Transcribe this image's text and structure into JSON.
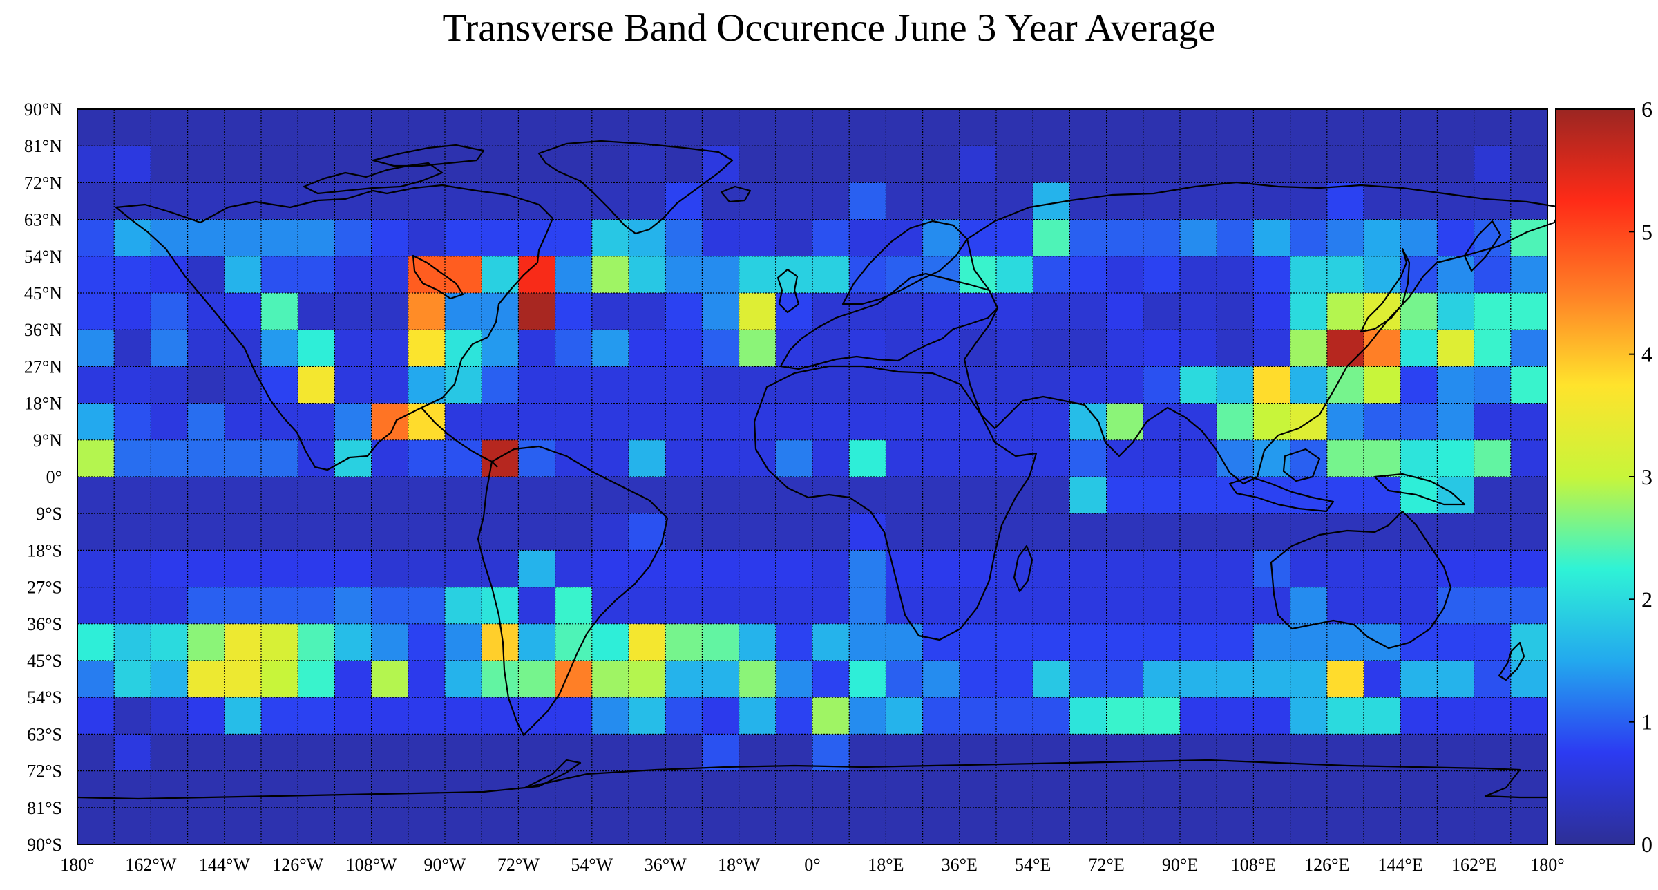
{
  "title": "Transverse Band Occurence June 3 Year Average",
  "colormap": "jet",
  "colors": {
    "background": "#ffffff",
    "grid": "#000000",
    "coastline": "#000000",
    "colormap_stops": [
      "#2d2f96",
      "#2c3bf2",
      "#23a9ee",
      "#2ff3d6",
      "#c8f53a",
      "#ffe32c",
      "#ff7f26",
      "#ff2b17",
      "#9b2622"
    ]
  },
  "chart_data": {
    "type": "heatmap",
    "title": "Transverse Band Occurence June 3 Year Average",
    "projection": "equirectangular",
    "cell_size_deg": 9,
    "lon_range": [
      -180,
      180
    ],
    "lat_range": [
      -90,
      90
    ],
    "x_tick_labels": [
      "180°",
      "162°W",
      "144°W",
      "126°W",
      "108°W",
      "90°W",
      "72°W",
      "54°W",
      "36°W",
      "18°W",
      "0°",
      "18°E",
      "36°E",
      "54°E",
      "72°E",
      "90°E",
      "108°E",
      "126°E",
      "144°E",
      "162°E",
      "180°"
    ],
    "y_tick_labels": [
      "90°N",
      "81°N",
      "72°N",
      "63°N",
      "54°N",
      "45°N",
      "36°N",
      "27°N",
      "18°N",
      "9°N",
      "0°",
      "9°S",
      "18°S",
      "27°S",
      "36°S",
      "45°S",
      "54°S",
      "63°S",
      "72°S",
      "81°S",
      "90°S"
    ],
    "colorbar": {
      "min": 0,
      "max": 6,
      "ticks": [
        "0",
        "1",
        "2",
        "3",
        "4",
        "5",
        "6"
      ]
    },
    "grid_rows_lat_north_edge": [
      90,
      81,
      72,
      63,
      54,
      45,
      36,
      27,
      18,
      9,
      0,
      -9,
      -18,
      -27,
      -36,
      -45,
      -54,
      -63,
      -72,
      -81
    ],
    "values": [
      [
        0.2,
        0.2,
        0.2,
        0.2,
        0.2,
        0.2,
        0.2,
        0.2,
        0.2,
        0.2,
        0.2,
        0.2,
        0.2,
        0.2,
        0.2,
        0.2,
        0.2,
        0.2,
        0.2,
        0.2,
        0.2,
        0.2,
        0.2,
        0.2,
        0.2,
        0.2,
        0.2,
        0.2,
        0.2,
        0.2,
        0.2,
        0.2,
        0.2,
        0.2,
        0.2,
        0.2,
        0.2,
        0.2,
        0.2,
        0.2
      ],
      [
        0.5,
        0.6,
        0.2,
        0.2,
        0.2,
        0.2,
        0.2,
        0.2,
        0.2,
        0.2,
        0.2,
        0.2,
        0.2,
        0.2,
        0.2,
        0.3,
        0.2,
        0.6,
        0.2,
        0.2,
        0.2,
        0.2,
        0.2,
        0.2,
        0.5,
        0.2,
        0.2,
        0.2,
        0.2,
        0.2,
        0.2,
        0.2,
        0.2,
        0.2,
        0.2,
        0.2,
        0.2,
        0.2,
        0.5,
        0.2
      ],
      [
        0.3,
        0.3,
        0.3,
        0.3,
        0.3,
        0.3,
        0.3,
        0.3,
        0.3,
        0.3,
        0.3,
        0.3,
        0.3,
        0.3,
        0.3,
        0.3,
        0.8,
        0.3,
        0.3,
        0.3,
        0.3,
        1.0,
        0.3,
        0.3,
        0.3,
        0.3,
        1.6,
        0.3,
        0.3,
        0.3,
        0.3,
        0.3,
        0.3,
        0.3,
        0.8,
        0.3,
        0.3,
        0.3,
        0.3,
        0.3
      ],
      [
        0.9,
        1.5,
        1.3,
        1.3,
        1.3,
        1.3,
        1.3,
        1.0,
        0.8,
        0.5,
        0.8,
        0.8,
        0.8,
        0.8,
        1.8,
        1.6,
        1.1,
        0.6,
        0.6,
        0.4,
        0.9,
        0.6,
        0.6,
        1.3,
        0.8,
        0.8,
        2.4,
        1.0,
        1.0,
        1.0,
        1.3,
        1.0,
        1.5,
        1.0,
        1.2,
        1.5,
        1.3,
        0.8,
        1.0,
        2.4
      ],
      [
        0.8,
        0.8,
        0.7,
        0.4,
        1.6,
        0.9,
        0.9,
        0.6,
        0.6,
        4.8,
        4.8,
        1.9,
        5.3,
        1.3,
        2.8,
        1.8,
        1.3,
        1.3,
        1.9,
        1.9,
        1.9,
        0.9,
        1.0,
        1.1,
        2.3,
        2.0,
        0.9,
        0.8,
        0.6,
        0.8,
        0.5,
        0.5,
        0.8,
        1.9,
        1.9,
        1.6,
        0.9,
        1.3,
        0.9,
        1.3
      ],
      [
        0.8,
        0.7,
        1.0,
        0.6,
        0.7,
        2.4,
        0.4,
        0.4,
        0.4,
        4.4,
        1.3,
        1.3,
        5.9,
        0.8,
        0.5,
        0.5,
        0.8,
        1.3,
        3.3,
        0.8,
        0.5,
        0.5,
        0.5,
        0.6,
        0.6,
        0.6,
        0.5,
        0.5,
        0.7,
        0.4,
        0.5,
        0.4,
        0.7,
        2.0,
        2.9,
        3.3,
        2.6,
        1.9,
        2.3,
        2.3
      ],
      [
        1.3,
        0.4,
        1.2,
        0.5,
        0.5,
        1.4,
        2.2,
        0.6,
        0.6,
        3.7,
        2.1,
        1.4,
        0.6,
        1.0,
        1.4,
        0.7,
        0.7,
        1.0,
        2.7,
        0.6,
        0.5,
        0.6,
        0.5,
        0.6,
        0.4,
        0.5,
        0.4,
        0.4,
        0.6,
        0.7,
        0.6,
        0.4,
        0.6,
        2.8,
        5.8,
        4.5,
        2.1,
        3.3,
        2.3,
        1.2
      ],
      [
        0.6,
        0.6,
        0.5,
        0.3,
        0.4,
        0.8,
        3.6,
        0.6,
        0.6,
        1.5,
        1.8,
        1.0,
        0.6,
        0.6,
        0.6,
        0.6,
        0.6,
        0.5,
        0.5,
        0.5,
        0.5,
        0.5,
        0.5,
        0.5,
        0.5,
        0.5,
        0.5,
        0.6,
        0.6,
        0.9,
        2.0,
        1.7,
        3.8,
        1.6,
        2.6,
        3.0,
        0.8,
        1.3,
        1.2,
        2.3
      ],
      [
        1.5,
        0.9,
        0.6,
        1.1,
        0.6,
        0.6,
        0.6,
        1.2,
        4.6,
        3.8,
        0.6,
        0.6,
        0.6,
        0.6,
        0.6,
        0.6,
        0.6,
        0.6,
        0.6,
        0.6,
        0.6,
        0.6,
        0.6,
        0.6,
        0.6,
        0.6,
        0.6,
        1.7,
        2.7,
        0.6,
        0.6,
        2.5,
        3.0,
        3.3,
        1.3,
        1.0,
        1.0,
        1.3,
        0.6,
        0.6
      ],
      [
        2.9,
        1.1,
        1.1,
        1.1,
        1.1,
        1.1,
        0.6,
        1.9,
        0.6,
        0.9,
        0.9,
        5.8,
        1.0,
        0.6,
        0.6,
        1.6,
        0.6,
        0.6,
        0.6,
        1.2,
        0.6,
        2.2,
        0.6,
        0.6,
        0.6,
        0.6,
        0.6,
        1.0,
        0.6,
        0.6,
        0.6,
        1.2,
        1.4,
        1.0,
        2.6,
        2.6,
        2.1,
        2.2,
        2.5,
        0.6
      ],
      [
        0.3,
        0.3,
        0.3,
        0.3,
        0.3,
        0.3,
        0.3,
        0.3,
        0.3,
        0.3,
        0.3,
        0.3,
        0.3,
        0.3,
        0.3,
        0.3,
        0.3,
        0.3,
        0.3,
        0.3,
        0.3,
        0.3,
        0.3,
        0.3,
        0.3,
        0.3,
        0.3,
        1.8,
        0.8,
        0.8,
        0.8,
        0.8,
        0.8,
        0.8,
        0.8,
        0.8,
        2.2,
        1.8,
        0.3,
        0.3
      ],
      [
        0.3,
        0.3,
        0.3,
        0.3,
        0.3,
        0.3,
        0.3,
        0.3,
        0.3,
        0.3,
        0.3,
        0.3,
        0.3,
        0.3,
        0.5,
        0.9,
        0.3,
        0.3,
        0.3,
        0.3,
        0.3,
        0.7,
        0.3,
        0.3,
        0.3,
        0.3,
        0.3,
        0.3,
        0.3,
        0.3,
        0.3,
        0.3,
        0.3,
        0.3,
        0.3,
        0.3,
        0.3,
        0.3,
        0.3,
        0.3
      ],
      [
        0.6,
        0.6,
        0.7,
        0.7,
        0.7,
        0.7,
        0.7,
        0.7,
        0.5,
        0.5,
        0.5,
        0.5,
        1.6,
        0.6,
        0.7,
        0.7,
        0.7,
        0.7,
        0.7,
        0.7,
        0.6,
        1.2,
        0.7,
        0.7,
        0.7,
        0.6,
        0.6,
        0.6,
        0.6,
        0.6,
        0.6,
        0.6,
        1.0,
        0.6,
        0.6,
        0.6,
        0.6,
        0.7,
        0.7,
        0.7
      ],
      [
        0.6,
        0.6,
        0.6,
        1.0,
        1.0,
        1.0,
        1.0,
        1.2,
        1.0,
        1.0,
        1.9,
        2.1,
        0.6,
        2.3,
        0.6,
        0.6,
        0.6,
        0.6,
        0.6,
        0.6,
        0.6,
        1.2,
        0.6,
        0.6,
        0.6,
        0.6,
        0.6,
        0.6,
        0.6,
        0.6,
        0.6,
        0.6,
        0.6,
        1.3,
        0.6,
        0.6,
        0.6,
        1.0,
        1.0,
        1.0
      ],
      [
        2.2,
        1.8,
        2.0,
        2.7,
        3.5,
        3.2,
        2.4,
        1.7,
        1.3,
        0.8,
        1.3,
        3.9,
        1.6,
        2.4,
        2.2,
        3.6,
        2.6,
        2.5,
        1.6,
        0.8,
        1.6,
        1.3,
        1.3,
        0.8,
        0.8,
        0.8,
        0.8,
        0.8,
        0.8,
        0.8,
        0.8,
        0.8,
        1.3,
        1.3,
        1.3,
        1.3,
        0.8,
        0.8,
        0.8,
        1.8
      ],
      [
        1.2,
        1.9,
        1.6,
        3.5,
        3.5,
        3.0,
        2.3,
        0.7,
        2.9,
        0.7,
        1.6,
        2.5,
        2.6,
        4.5,
        2.8,
        2.9,
        1.6,
        1.6,
        2.7,
        1.3,
        0.8,
        2.2,
        1.0,
        1.3,
        0.8,
        0.8,
        1.8,
        0.9,
        0.9,
        1.6,
        1.6,
        1.6,
        1.6,
        1.6,
        3.8,
        0.7,
        1.6,
        1.6,
        0.9,
        1.6
      ],
      [
        0.7,
        0.3,
        0.5,
        0.7,
        1.7,
        0.8,
        0.8,
        0.7,
        0.7,
        0.7,
        0.7,
        0.7,
        0.7,
        0.7,
        1.3,
        1.7,
        0.9,
        0.7,
        1.6,
        0.8,
        2.8,
        1.3,
        1.6,
        0.9,
        0.9,
        0.9,
        0.9,
        2.1,
        2.3,
        2.3,
        0.7,
        0.7,
        0.7,
        1.6,
        2.0,
        2.0,
        0.7,
        0.7,
        0.7,
        0.7
      ],
      [
        0.2,
        0.6,
        0.2,
        0.2,
        0.2,
        0.2,
        0.2,
        0.2,
        0.2,
        0.2,
        0.2,
        0.2,
        0.2,
        0.2,
        0.2,
        0.2,
        0.2,
        0.9,
        0.2,
        0.2,
        1.0,
        0.2,
        0.2,
        0.2,
        0.2,
        0.2,
        0.2,
        0.2,
        0.2,
        0.2,
        0.2,
        0.2,
        0.2,
        0.2,
        0.2,
        0.2,
        0.2,
        0.2,
        0.2,
        0.2
      ],
      [
        0.2,
        0.2,
        0.2,
        0.2,
        0.2,
        0.2,
        0.2,
        0.2,
        0.2,
        0.2,
        0.2,
        0.2,
        0.2,
        0.2,
        0.2,
        0.2,
        0.2,
        0.2,
        0.2,
        0.2,
        0.2,
        0.2,
        0.2,
        0.2,
        0.2,
        0.2,
        0.2,
        0.2,
        0.2,
        0.2,
        0.2,
        0.2,
        0.2,
        0.2,
        0.2,
        0.2,
        0.2,
        0.2,
        0.2,
        0.2
      ],
      [
        0.2,
        0.2,
        0.2,
        0.2,
        0.2,
        0.2,
        0.2,
        0.2,
        0.2,
        0.2,
        0.2,
        0.2,
        0.2,
        0.2,
        0.2,
        0.2,
        0.2,
        0.2,
        0.2,
        0.2,
        0.2,
        0.2,
        0.2,
        0.2,
        0.2,
        0.2,
        0.2,
        0.2,
        0.2,
        0.2,
        0.2,
        0.2,
        0.2,
        0.2,
        0.2,
        0.2,
        0.2,
        0.2,
        0.2,
        0.2
      ]
    ]
  }
}
